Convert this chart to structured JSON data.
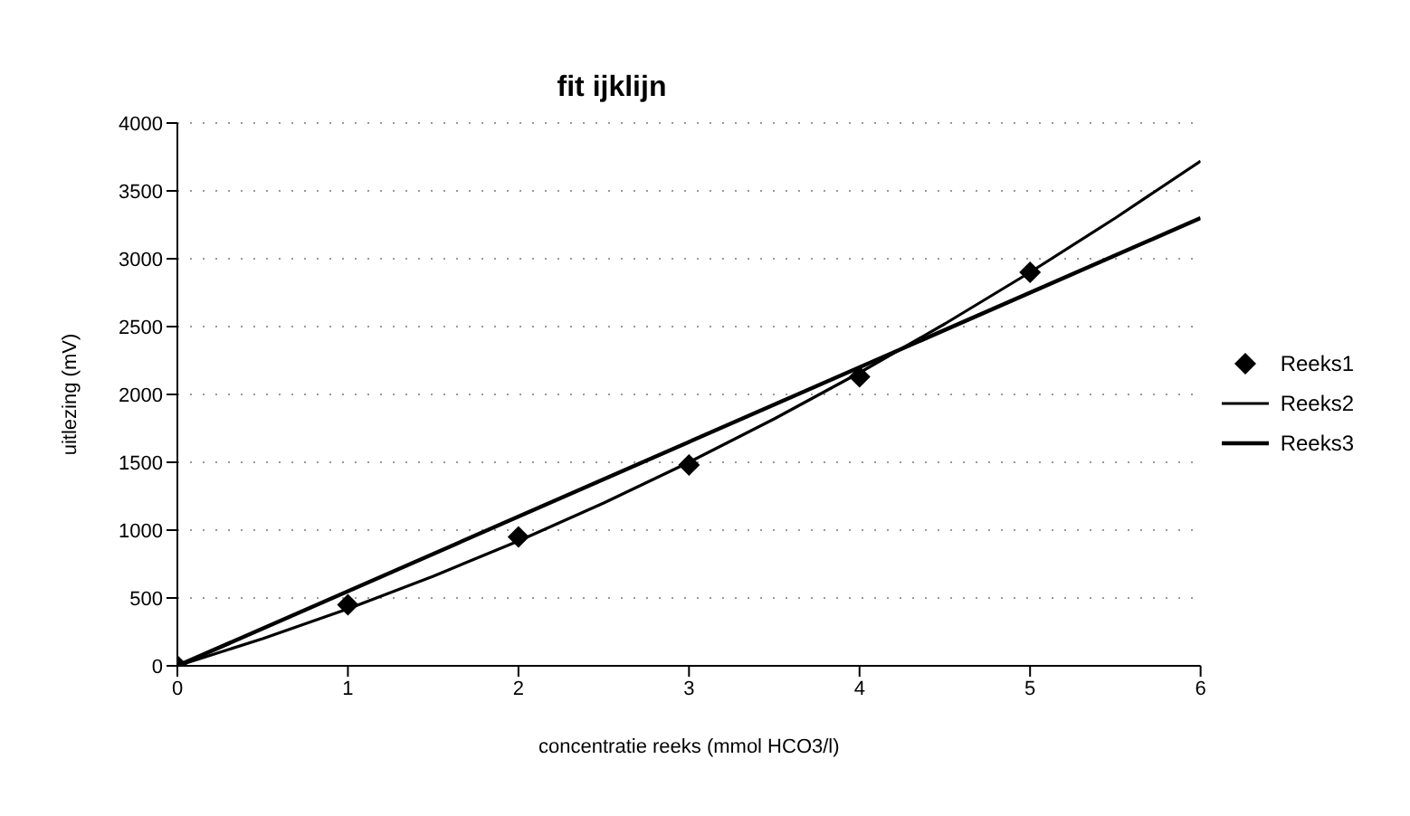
{
  "chart_data": {
    "type": "scatter",
    "title": "fit ijklijn",
    "xlabel": "concentratie reeks (mmol HCO3/l)",
    "ylabel": "uitlezing (mV)",
    "xlim": [
      0,
      6
    ],
    "xticks": [
      0,
      1,
      2,
      3,
      4,
      5,
      6
    ],
    "ylim": [
      0,
      4000
    ],
    "yticks": [
      0,
      500,
      1000,
      1500,
      2000,
      2500,
      3000,
      3500,
      4000
    ],
    "grid": "y",
    "legend": "right",
    "series": [
      {
        "name": "Reeks1",
        "marker": "diamond",
        "color": "#000000",
        "x": [
          0,
          1,
          2,
          3,
          4,
          5
        ],
        "values": [
          0,
          450,
          950,
          1480,
          2130,
          2900
        ]
      },
      {
        "name": "Reeks2",
        "type": "line",
        "marker": "none",
        "color": "#000000",
        "x": [
          0,
          0.5,
          1,
          1.5,
          2,
          2.5,
          3,
          3.5,
          4,
          4.5,
          5,
          5.5,
          6
        ],
        "values": [
          0,
          200,
          420,
          660,
          920,
          1200,
          1500,
          1820,
          2160,
          2520,
          2900,
          3300,
          3720
        ]
      },
      {
        "name": "Reeks3",
        "type": "line",
        "marker": "none",
        "color": "#000000",
        "x": [
          0,
          6
        ],
        "values": [
          0,
          3300
        ]
      }
    ]
  }
}
